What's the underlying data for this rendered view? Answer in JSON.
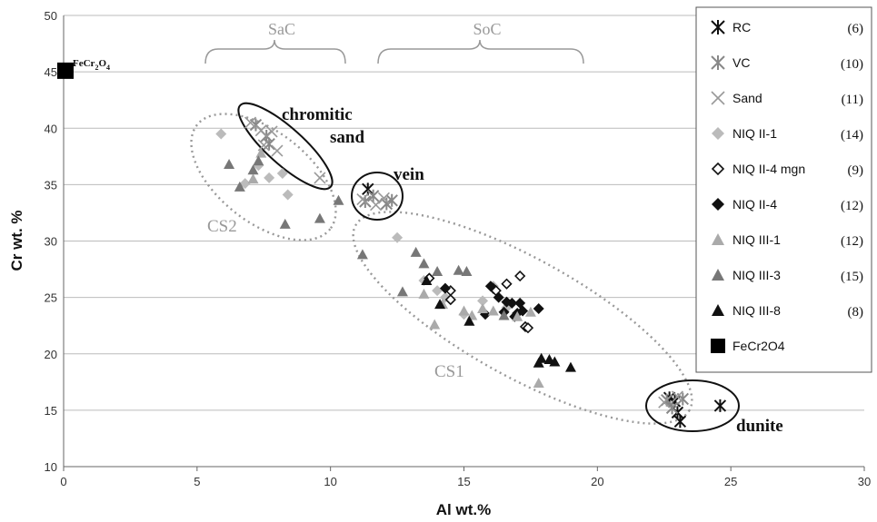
{
  "chart_data": {
    "type": "scatter",
    "title": "",
    "xlabel": "Al wt.%",
    "ylabel": "Cr wt. %",
    "xlim": [
      0,
      30
    ],
    "ylim": [
      10,
      50
    ],
    "xticks": [
      0,
      5,
      10,
      15,
      20,
      25,
      30
    ],
    "yticks": [
      10,
      15,
      20,
      25,
      30,
      35,
      40,
      45,
      50
    ],
    "grid": "horizontal",
    "legend_position": "right",
    "series": [
      {
        "name": "RC",
        "count": "(6)",
        "marker": "asterisk",
        "color": "#111111",
        "points": [
          [
            11.4,
            34.6
          ],
          [
            23.0,
            14.8
          ],
          [
            23.1,
            14.0
          ],
          [
            22.9,
            15.8
          ],
          [
            24.6,
            15.4
          ],
          [
            22.7,
            16.1
          ]
        ]
      },
      {
        "name": "VC",
        "count": "(10)",
        "marker": "asterisk",
        "color": "#888888",
        "points": [
          [
            7.2,
            40.3
          ],
          [
            7.6,
            39.3
          ],
          [
            7.7,
            38.6
          ],
          [
            11.3,
            33.5
          ],
          [
            11.6,
            34.0
          ],
          [
            12.1,
            33.3
          ],
          [
            12.3,
            33.6
          ],
          [
            22.6,
            15.9
          ],
          [
            23.2,
            16.0
          ],
          [
            22.8,
            15.2
          ]
        ]
      },
      {
        "name": "Sand",
        "count": "(11)",
        "marker": "x",
        "color": "#999999",
        "points": [
          [
            7.0,
            40.5
          ],
          [
            7.4,
            39.8
          ],
          [
            7.8,
            39.7
          ],
          [
            7.5,
            38.5
          ],
          [
            8.0,
            38.0
          ],
          [
            9.6,
            35.6
          ],
          [
            11.2,
            33.7
          ],
          [
            11.7,
            33.2
          ],
          [
            12.0,
            33.8
          ],
          [
            23.0,
            16.2
          ],
          [
            22.5,
            15.7
          ]
        ]
      },
      {
        "name": "NIQ II-1",
        "count": "(14)",
        "marker": "diamond",
        "color": "#bbbbbb",
        "points": [
          [
            5.9,
            39.5
          ],
          [
            7.3,
            36.7
          ],
          [
            6.8,
            35.1
          ],
          [
            7.7,
            35.6
          ],
          [
            8.4,
            34.1
          ],
          [
            8.2,
            36.0
          ],
          [
            12.5,
            30.3
          ],
          [
            13.5,
            26.5
          ],
          [
            14.0,
            25.6
          ],
          [
            14.3,
            25.0
          ],
          [
            15.7,
            24.7
          ],
          [
            16.1,
            26.0
          ],
          [
            16.6,
            24.1
          ],
          [
            15.0,
            23.5
          ]
        ]
      },
      {
        "name": "NIQ II-4 mgn",
        "count": "(9)",
        "marker": "diamond-open",
        "color": "#111111",
        "points": [
          [
            13.7,
            26.7
          ],
          [
            14.5,
            25.6
          ],
          [
            14.5,
            24.8
          ],
          [
            16.1,
            25.8
          ],
          [
            16.2,
            25.6
          ],
          [
            16.6,
            26.2
          ],
          [
            17.1,
            26.9
          ],
          [
            17.3,
            22.4
          ],
          [
            17.4,
            22.3
          ]
        ]
      },
      {
        "name": "NIQ II-4",
        "count": "(12)",
        "marker": "diamond",
        "color": "#111111",
        "points": [
          [
            14.3,
            25.8
          ],
          [
            15.8,
            23.5
          ],
          [
            16.0,
            26.0
          ],
          [
            16.3,
            25.0
          ],
          [
            16.6,
            24.6
          ],
          [
            16.8,
            24.5
          ],
          [
            16.9,
            23.3
          ],
          [
            17.0,
            23.6
          ],
          [
            17.1,
            24.5
          ],
          [
            17.2,
            23.8
          ],
          [
            17.8,
            24.0
          ],
          [
            16.5,
            23.7
          ]
        ]
      },
      {
        "name": "NIQ III-1",
        "count": "(12)",
        "marker": "triangle",
        "color": "#aaaaaa",
        "points": [
          [
            7.1,
            35.5
          ],
          [
            7.4,
            37.8
          ],
          [
            13.5,
            25.3
          ],
          [
            13.9,
            22.6
          ],
          [
            14.2,
            24.4
          ],
          [
            15.0,
            23.8
          ],
          [
            15.3,
            23.4
          ],
          [
            15.7,
            24.0
          ],
          [
            16.1,
            23.8
          ],
          [
            17.5,
            23.7
          ],
          [
            17.8,
            17.4
          ],
          [
            17.0,
            23.3
          ]
        ]
      },
      {
        "name": "NIQ III-3",
        "count": "(15)",
        "marker": "triangle",
        "color": "#777777",
        "points": [
          [
            6.2,
            36.8
          ],
          [
            6.6,
            34.8
          ],
          [
            7.1,
            36.3
          ],
          [
            7.3,
            37.1
          ],
          [
            8.3,
            31.5
          ],
          [
            9.6,
            32.0
          ],
          [
            10.3,
            33.6
          ],
          [
            11.2,
            28.8
          ],
          [
            12.7,
            25.5
          ],
          [
            13.2,
            29.0
          ],
          [
            13.5,
            28.0
          ],
          [
            14.0,
            27.3
          ],
          [
            14.8,
            27.4
          ],
          [
            15.1,
            27.3
          ],
          [
            16.5,
            23.4
          ]
        ]
      },
      {
        "name": "NIQ III-8",
        "count": "(8)",
        "marker": "triangle",
        "color": "#111111",
        "points": [
          [
            13.6,
            26.5
          ],
          [
            14.1,
            24.4
          ],
          [
            15.2,
            22.9
          ],
          [
            17.8,
            19.2
          ],
          [
            18.2,
            19.5
          ],
          [
            18.4,
            19.3
          ],
          [
            19.0,
            18.8
          ],
          [
            17.9,
            19.6
          ]
        ]
      },
      {
        "name": "FeCr2O4",
        "count": "",
        "marker": "square",
        "color": "#000000",
        "points": [
          [
            0,
            45.1
          ]
        ]
      }
    ],
    "annotations": [
      {
        "text": "FeCr",
        "sub1": "2",
        "mid": "O",
        "sub2": "4"
      },
      {
        "text": "SaC"
      },
      {
        "text": "SoC"
      },
      {
        "text": "chromitic"
      },
      {
        "text": "sand"
      },
      {
        "text": "vein"
      },
      {
        "text": "CS2"
      },
      {
        "text": "CS1"
      },
      {
        "text": "dunite"
      }
    ]
  }
}
